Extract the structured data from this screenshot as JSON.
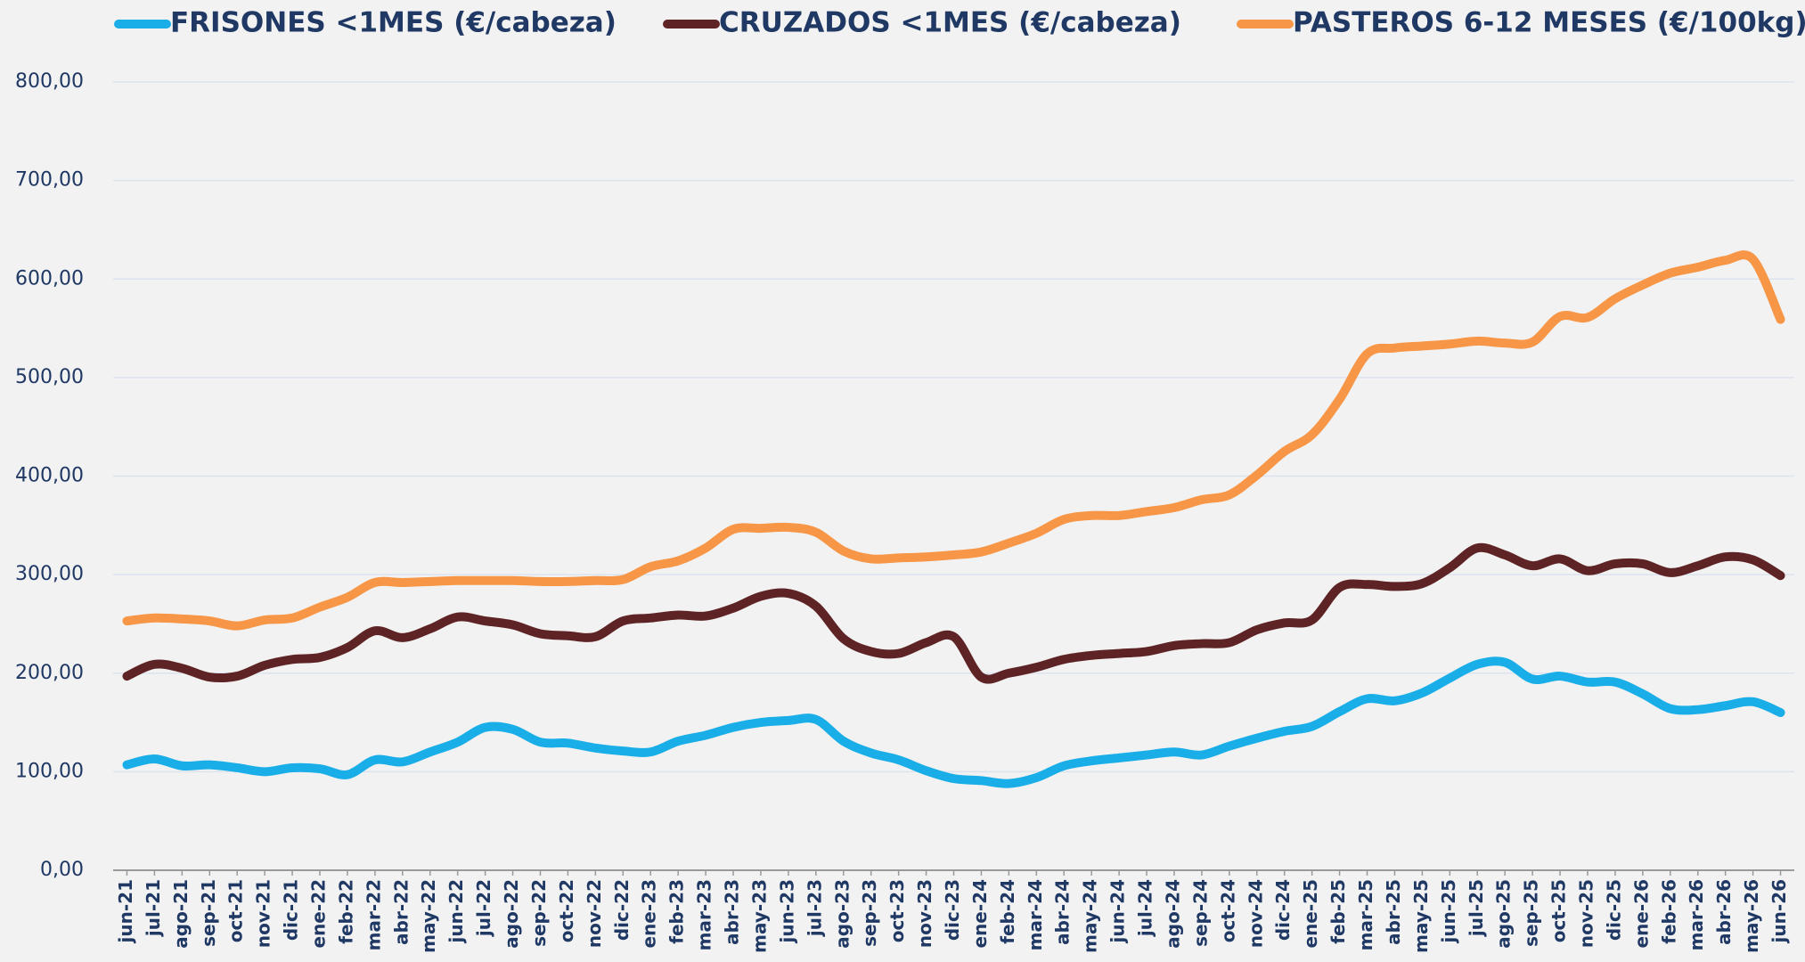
{
  "chart_data": {
    "type": "line",
    "categories": [
      "jun-21",
      "jul-21",
      "ago-21",
      "sep-21",
      "oct-21",
      "nov-21",
      "dic-21",
      "ene-22",
      "feb-22",
      "mar-22",
      "abr-22",
      "may-22",
      "jun-22",
      "jul-22",
      "ago-22",
      "sep-22",
      "oct-22",
      "nov-22",
      "dic-22",
      "ene-23",
      "feb-23",
      "mar-23",
      "abr-23",
      "may-23",
      "jun-23",
      "jul-23",
      "ago-23",
      "sep-23",
      "oct-23",
      "nov-23",
      "dic-23",
      "ene-24",
      "feb-24",
      "mar-24",
      "abr-24",
      "may-24",
      "jun-24",
      "jul-24",
      "ago-24",
      "sep-24",
      "oct-24",
      "nov-24",
      "dic-24",
      "ene-25",
      "feb-25",
      "mar-25",
      "abr-25",
      "may-25",
      "jun-25",
      "jul-25",
      "ago-25",
      "sep-25",
      "oct-25",
      "nov-25",
      "dic-25",
      "ene-26",
      "feb-26",
      "mar-26",
      "abr-26",
      "may-26",
      "jun-26"
    ],
    "series": [
      {
        "name": "FRISONES <1MES (€/cabeza)",
        "color": "#1aaee8",
        "values": [
          107,
          113,
          106,
          107,
          104,
          100,
          104,
          103,
          97,
          112,
          110,
          120,
          130,
          145,
          143,
          130,
          129,
          124,
          121,
          120,
          131,
          137,
          145,
          150,
          152,
          153,
          131,
          119,
          112,
          101,
          93,
          91,
          88,
          94,
          106,
          111,
          114,
          117,
          120,
          117,
          126,
          134,
          141,
          146,
          161,
          174,
          172,
          180,
          195,
          209,
          211,
          194,
          197,
          191,
          191,
          179,
          164,
          163,
          167,
          171,
          160
        ]
      },
      {
        "name": "CRUZADOS <1MES (€/cabeza)",
        "color": "#5e2425",
        "values": [
          197,
          209,
          205,
          196,
          197,
          208,
          214,
          216,
          226,
          243,
          236,
          245,
          257,
          253,
          249,
          240,
          238,
          237,
          253,
          256,
          259,
          258,
          266,
          278,
          281,
          268,
          235,
          222,
          220,
          231,
          237,
          196,
          200,
          206,
          214,
          218,
          220,
          222,
          228,
          230,
          231,
          244,
          251,
          254,
          287,
          290,
          288,
          291,
          307,
          327,
          320,
          309,
          316,
          304,
          311,
          311,
          302,
          309,
          318,
          315,
          299
        ]
      },
      {
        "name": "PASTEROS 6-12 MESES (€/100kg)",
        "color": "#f79646",
        "values": [
          253,
          256,
          255,
          253,
          248,
          254,
          256,
          267,
          277,
          292,
          292,
          293,
          294,
          294,
          294,
          293,
          293,
          294,
          295,
          308,
          314,
          327,
          346,
          347,
          348,
          343,
          324,
          316,
          317,
          318,
          320,
          323,
          332,
          342,
          356,
          360,
          360,
          364,
          368,
          376,
          381,
          401,
          425,
          442,
          478,
          524,
          530,
          532,
          534,
          537,
          535,
          536,
          562,
          561,
          580,
          594,
          606,
          612,
          619,
          620,
          559
        ]
      }
    ],
    "ylim": [
      0,
      800
    ],
    "yticks": [
      {
        "value": 0,
        "label": "0,00"
      },
      {
        "value": 100,
        "label": "100,00"
      },
      {
        "value": 200,
        "label": "200,00"
      },
      {
        "value": 300,
        "label": "300,00"
      },
      {
        "value": 400,
        "label": "400,00"
      },
      {
        "value": 500,
        "label": "500,00"
      },
      {
        "value": 600,
        "label": "600,00"
      },
      {
        "value": 700,
        "label": "700,00"
      },
      {
        "value": 800,
        "label": "800,00"
      }
    ],
    "grid": true,
    "legend": "top"
  }
}
